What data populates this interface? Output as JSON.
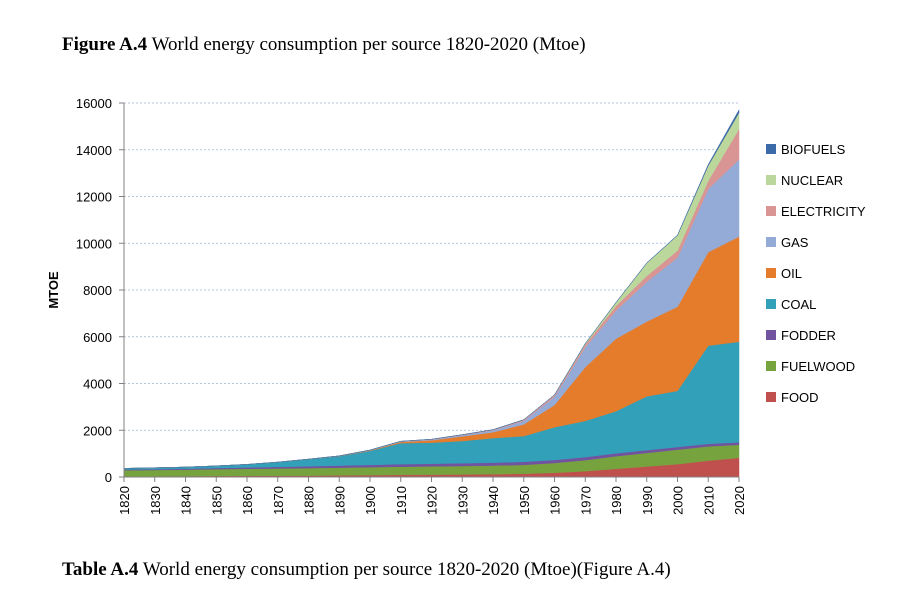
{
  "figure_caption": {
    "label": "Figure A.4",
    "text": "World energy consumption per source 1820-2020 (Mtoe)"
  },
  "table_caption": {
    "label": "Table A.4",
    "text": "World energy consumption per source 1820-2020 (Mtoe)(Figure A.4)"
  },
  "chart_data": {
    "type": "area",
    "stacked": true,
    "title": "",
    "xlabel": "",
    "ylabel": "MTOE",
    "xlim": [
      1820,
      2020
    ],
    "ylim": [
      0,
      16000
    ],
    "yticks": [
      0,
      2000,
      4000,
      6000,
      8000,
      10000,
      12000,
      14000,
      16000
    ],
    "xticks": [
      1820,
      1830,
      1840,
      1850,
      1860,
      1870,
      1880,
      1890,
      1900,
      1910,
      1920,
      1930,
      1940,
      1950,
      1960,
      1970,
      1980,
      1990,
      2000,
      2010,
      2020
    ],
    "grid": "horizontal-dashed",
    "legend_position": "right",
    "x": [
      1820,
      1830,
      1840,
      1850,
      1860,
      1870,
      1880,
      1890,
      1900,
      1910,
      1920,
      1930,
      1940,
      1950,
      1960,
      1970,
      1980,
      1990,
      2000,
      2010,
      2020
    ],
    "series": [
      {
        "name": "FOOD",
        "color": "#C0504D",
        "values": [
          30,
          35,
          40,
          45,
          50,
          55,
          60,
          70,
          80,
          90,
          100,
          110,
          120,
          140,
          180,
          250,
          350,
          450,
          550,
          700,
          820
        ]
      },
      {
        "name": "FUELWOOD",
        "color": "#77A33E",
        "values": [
          260,
          265,
          275,
          290,
          300,
          310,
          320,
          330,
          340,
          350,
          355,
          360,
          370,
          380,
          420,
          470,
          540,
          580,
          620,
          610,
          560
        ]
      },
      {
        "name": "FODDER",
        "color": "#7153A0",
        "values": [
          30,
          35,
          40,
          50,
          60,
          70,
          80,
          90,
          100,
          110,
          115,
          120,
          125,
          130,
          130,
          130,
          125,
          120,
          115,
          110,
          105
        ]
      },
      {
        "name": "COAL",
        "color": "#31A0B8",
        "values": [
          50,
          60,
          70,
          90,
          130,
          200,
          300,
          400,
          600,
          900,
          900,
          950,
          1050,
          1100,
          1400,
          1550,
          1800,
          2300,
          2400,
          4200,
          4300
        ]
      },
      {
        "name": "OIL",
        "color": "#E47C2C",
        "values": [
          0,
          0,
          0,
          0,
          0,
          2,
          5,
          10,
          20,
          50,
          100,
          200,
          250,
          500,
          950,
          2300,
          3100,
          3200,
          3600,
          4000,
          4500
        ]
      },
      {
        "name": "GAS",
        "color": "#94ABD7",
        "values": [
          0,
          0,
          0,
          0,
          0,
          0,
          0,
          5,
          10,
          20,
          30,
          50,
          80,
          150,
          350,
          850,
          1200,
          1700,
          2100,
          2700,
          3300
        ]
      },
      {
        "name": "ELECTRICITY",
        "color": "#D99594",
        "values": [
          0,
          0,
          0,
          0,
          0,
          0,
          0,
          0,
          5,
          10,
          15,
          20,
          30,
          50,
          80,
          120,
          200,
          250,
          300,
          350,
          1300
        ]
      },
      {
        "name": "NUCLEAR",
        "color": "#BBD79B",
        "values": [
          0,
          0,
          0,
          0,
          0,
          0,
          0,
          0,
          0,
          0,
          0,
          0,
          0,
          0,
          5,
          40,
          150,
          550,
          650,
          650,
          700
        ]
      },
      {
        "name": "BIOFUELS",
        "color": "#3A6AA8",
        "values": [
          0,
          0,
          0,
          0,
          0,
          0,
          0,
          0,
          0,
          0,
          0,
          0,
          0,
          0,
          0,
          0,
          5,
          10,
          15,
          50,
          120
        ]
      }
    ],
    "legend_order": [
      "BIOFUELS",
      "NUCLEAR",
      "ELECTRICITY",
      "GAS",
      "OIL",
      "COAL",
      "FODDER",
      "FUELWOOD",
      "FOOD"
    ]
  }
}
